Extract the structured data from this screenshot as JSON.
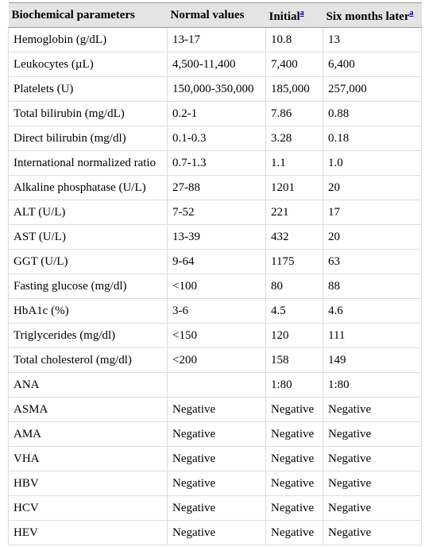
{
  "table": {
    "header": [
      {
        "label": "Biochemical parameters"
      },
      {
        "label": "Normal values"
      },
      {
        "label": "Initial",
        "footnote": "a"
      },
      {
        "label": "Six months later",
        "footnote": "a"
      }
    ],
    "rows": [
      [
        "Hemoglobin (g/dL)",
        "13-17",
        "10.8",
        "13"
      ],
      [
        "Leukocytes (µL)",
        "4,500-11,400",
        "7,400",
        "6,400"
      ],
      [
        "Platelets (U)",
        "150,000-350,000",
        "185,000",
        "257,000"
      ],
      [
        "Total bilirubin (mg/dL)",
        "0.2-1",
        "7.86",
        "0.88"
      ],
      [
        "Direct bilirubin (mg/dl)",
        "0.1-0.3",
        "3.28",
        "0.18"
      ],
      [
        "International normalized ratio",
        "0.7-1.3",
        "1.1",
        "1.0"
      ],
      [
        "Alkaline phosphatase (U/L)",
        "27-88",
        "1201",
        "20"
      ],
      [
        "ALT (U/L)",
        "7-52",
        "221",
        "17"
      ],
      [
        "AST (U/L)",
        "13-39",
        "432",
        "20"
      ],
      [
        "GGT (U/L)",
        "9-64",
        "1175",
        "63"
      ],
      [
        "Fasting glucose (mg/dl)",
        "<100",
        "80",
        "88"
      ],
      [
        "HbA1c (%)",
        "3-6",
        "4.5",
        "4.6"
      ],
      [
        "Triglycerides (mg/dl)",
        "<150",
        "120",
        "111"
      ],
      [
        "Total cholesterol (mg/dl)",
        "<200",
        "158",
        "149"
      ],
      [
        "ANA",
        null,
        "1:80",
        "1:80"
      ],
      [
        "ASMA",
        "Negative",
        "Negative",
        "Negative"
      ],
      [
        "AMA",
        "Negative",
        "Negative",
        "Negative"
      ],
      [
        "VHA",
        "Negative",
        "Negative",
        "Negative"
      ],
      [
        "HBV",
        "Negative",
        "Negative",
        "Negative"
      ],
      [
        "HCV",
        "Negative",
        "Negative",
        "Negative"
      ],
      [
        "HEV",
        "Negative",
        "Negative",
        "Negative"
      ]
    ]
  }
}
